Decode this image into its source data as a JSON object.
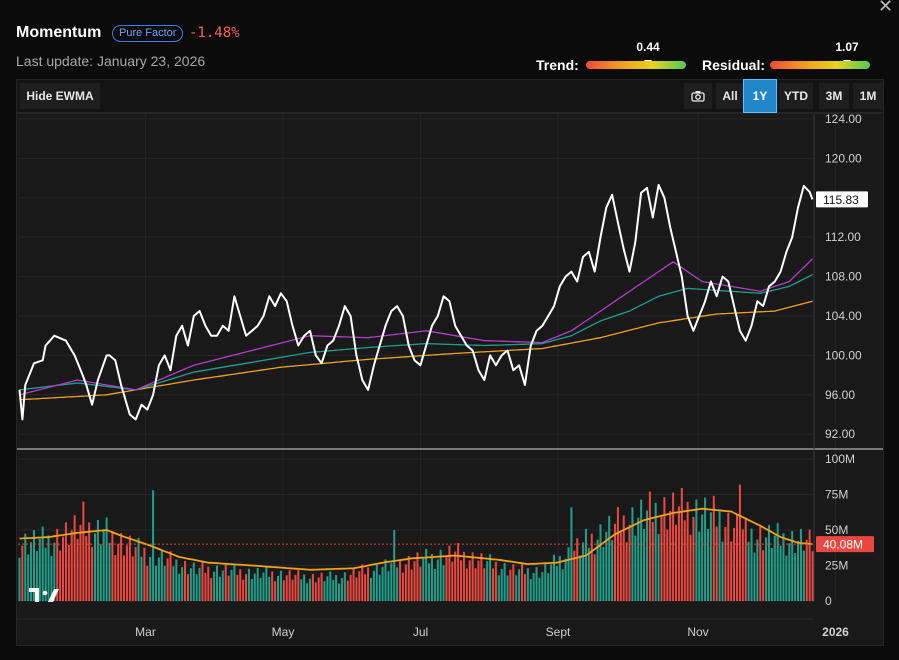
{
  "header": {
    "title": "Momentum",
    "badge": "Pure Factor",
    "change": "-1.48%",
    "last_update": "Last update: January 23, 2026",
    "close_glyph": "✕"
  },
  "gauges": {
    "trend": {
      "label": "Trend:",
      "value_text": "0.44",
      "value": 0.44
    },
    "residual": {
      "label": "Residual:",
      "value_text": "1.07",
      "value": 1.07
    }
  },
  "toolbar": {
    "hide_ewma": "Hide EWMA",
    "camera_icon": "camera-icon",
    "ranges": [
      "All",
      "1Y",
      "YTD",
      "3M",
      "1M"
    ],
    "active_range": "1Y"
  },
  "chart_data": {
    "type": "line",
    "price_axis": {
      "ticks": [
        "124.00",
        "120.00",
        "116.00",
        "112.00",
        "108.00",
        "104.00",
        "100.00",
        "96.00",
        "92.00"
      ],
      "ylim": [
        90.5,
        124.5
      ]
    },
    "volume_axis": {
      "ticks": [
        "100M",
        "75M",
        "50M",
        "25M",
        "0"
      ],
      "ylim": [
        0,
        100
      ]
    },
    "x_labels": [
      "Mar",
      "May",
      "Jul",
      "Sept",
      "Nov",
      "2026"
    ],
    "last_price_label": "115.83",
    "last_volume_label": "40.08M",
    "colors": {
      "price": "#ffffff",
      "ewma_fast": "#b33fc8",
      "ewma_mid": "#1f9e8a",
      "ewma_slow": "#f2a21d",
      "vol_up": "#1f9e8a",
      "vol_down": "#e8483f",
      "vol_avg": "#f2a21d",
      "vol_label_bg": "#e8483f"
    },
    "price_keypoints": [
      [
        0,
        96.5
      ],
      [
        1,
        93.5
      ],
      [
        2,
        97
      ],
      [
        5,
        99.2
      ],
      [
        8,
        99.5
      ],
      [
        9,
        101
      ],
      [
        12,
        102
      ],
      [
        16,
        101.5
      ],
      [
        19,
        100
      ],
      [
        22,
        97.8
      ],
      [
        23,
        97
      ],
      [
        25,
        95
      ],
      [
        27,
        97.5
      ],
      [
        30,
        100
      ],
      [
        31,
        100
      ],
      [
        33,
        99.5
      ],
      [
        35,
        97
      ],
      [
        37,
        95
      ],
      [
        38,
        94
      ],
      [
        40,
        93.5
      ],
      [
        42,
        95
      ],
      [
        44,
        94.5
      ],
      [
        46,
        96
      ],
      [
        48,
        99
      ],
      [
        50,
        100
      ],
      [
        52,
        98.5
      ],
      [
        54,
        102
      ],
      [
        56,
        103
      ],
      [
        58,
        101
      ],
      [
        60,
        104
      ],
      [
        62,
        104.5
      ],
      [
        64,
        103
      ],
      [
        66,
        102
      ],
      [
        68,
        102
      ],
      [
        70,
        103
      ],
      [
        72,
        102.5
      ],
      [
        74,
        106
      ],
      [
        76,
        104
      ],
      [
        78,
        102
      ],
      [
        80,
        102.5
      ],
      [
        82,
        103
      ],
      [
        84,
        104
      ],
      [
        86,
        106
      ],
      [
        88,
        105
      ],
      [
        90,
        106.3
      ],
      [
        92,
        105.5
      ],
      [
        94,
        103
      ],
      [
        96,
        101
      ],
      [
        98,
        102
      ],
      [
        100,
        102.5
      ],
      [
        102,
        100
      ],
      [
        104,
        99.2
      ],
      [
        106,
        101
      ],
      [
        108,
        101.5
      ],
      [
        110,
        103
      ],
      [
        112,
        105
      ],
      [
        114,
        104
      ],
      [
        116,
        100
      ],
      [
        118,
        97.5
      ],
      [
        120,
        96.5
      ],
      [
        122,
        99
      ],
      [
        124,
        101
      ],
      [
        126,
        103
      ],
      [
        128,
        104.5
      ],
      [
        130,
        105
      ],
      [
        132,
        104
      ],
      [
        134,
        101
      ],
      [
        136,
        99.5
      ],
      [
        138,
        99
      ],
      [
        140,
        101
      ],
      [
        142,
        103
      ],
      [
        144,
        104
      ],
      [
        146,
        106
      ],
      [
        148,
        105.5
      ],
      [
        150,
        103
      ],
      [
        152,
        102
      ],
      [
        154,
        101
      ],
      [
        156,
        100.5
      ],
      [
        158,
        98.5
      ],
      [
        160,
        97.5
      ],
      [
        162,
        100
      ],
      [
        164,
        99
      ],
      [
        166,
        100
      ],
      [
        168,
        100.5
      ],
      [
        170,
        98.5
      ],
      [
        172,
        99
      ],
      [
        174,
        97
      ],
      [
        176,
        101
      ],
      [
        178,
        102.5
      ],
      [
        180,
        103
      ],
      [
        182,
        104
      ],
      [
        184,
        105
      ],
      [
        186,
        107
      ],
      [
        188,
        108
      ],
      [
        190,
        108.5
      ],
      [
        192,
        107.5
      ],
      [
        194,
        110
      ],
      [
        196,
        110.5
      ],
      [
        198,
        108.5
      ],
      [
        200,
        112
      ],
      [
        202,
        115
      ],
      [
        204,
        116.3
      ],
      [
        206,
        113.5
      ],
      [
        208,
        110.8
      ],
      [
        210,
        108.5
      ],
      [
        212,
        111.5
      ],
      [
        214,
        116.5
      ],
      [
        216,
        117
      ],
      [
        218,
        114
      ],
      [
        220,
        117.3
      ],
      [
        222,
        116
      ],
      [
        224,
        113
      ],
      [
        226,
        110.5
      ],
      [
        228,
        108
      ],
      [
        230,
        104
      ],
      [
        232,
        102.5
      ],
      [
        234,
        104
      ],
      [
        236,
        105.5
      ],
      [
        238,
        107.5
      ],
      [
        240,
        106
      ],
      [
        242,
        108
      ],
      [
        244,
        107.5
      ],
      [
        246,
        105
      ],
      [
        248,
        102.5
      ],
      [
        250,
        101.5
      ],
      [
        252,
        103
      ],
      [
        254,
        105.5
      ],
      [
        256,
        105
      ],
      [
        258,
        107
      ],
      [
        260,
        107.5
      ],
      [
        262,
        108.5
      ],
      [
        264,
        110.5
      ],
      [
        266,
        112
      ],
      [
        268,
        115
      ],
      [
        270,
        117.2
      ],
      [
        272,
        116.6
      ],
      [
        273,
        115.83
      ]
    ],
    "ewma_fast_keypoints": [
      [
        0,
        96
      ],
      [
        20,
        97.5
      ],
      [
        40,
        96.5
      ],
      [
        60,
        99
      ],
      [
        80,
        100.5
      ],
      [
        100,
        102
      ],
      [
        120,
        101.8
      ],
      [
        140,
        102.5
      ],
      [
        160,
        101.5
      ],
      [
        180,
        101.3
      ],
      [
        190,
        102.5
      ],
      [
        200,
        104.5
      ],
      [
        210,
        106.5
      ],
      [
        220,
        108.5
      ],
      [
        225,
        109.5
      ],
      [
        235,
        107.5
      ],
      [
        245,
        107
      ],
      [
        255,
        106.5
      ],
      [
        265,
        107.5
      ],
      [
        273,
        109.8
      ]
    ],
    "ewma_mid_keypoints": [
      [
        0,
        96.5
      ],
      [
        20,
        97.2
      ],
      [
        40,
        96.5
      ],
      [
        60,
        98.3
      ],
      [
        80,
        99.3
      ],
      [
        100,
        100.3
      ],
      [
        120,
        100.8
      ],
      [
        140,
        101.2
      ],
      [
        160,
        101
      ],
      [
        180,
        101.2
      ],
      [
        190,
        102
      ],
      [
        200,
        103.5
      ],
      [
        210,
        104.5
      ],
      [
        220,
        106
      ],
      [
        230,
        106.8
      ],
      [
        245,
        106.5
      ],
      [
        255,
        106.3
      ],
      [
        265,
        107
      ],
      [
        273,
        108.2
      ]
    ],
    "ewma_slow_keypoints": [
      [
        0,
        95.5
      ],
      [
        30,
        96
      ],
      [
        60,
        97.5
      ],
      [
        90,
        98.8
      ],
      [
        120,
        99.6
      ],
      [
        150,
        100.2
      ],
      [
        180,
        100.7
      ],
      [
        200,
        101.8
      ],
      [
        220,
        103.3
      ],
      [
        240,
        104.2
      ],
      [
        260,
        104.5
      ],
      [
        273,
        105.5
      ]
    ],
    "volume_keypoints": [
      [
        0,
        42
      ],
      [
        10,
        43
      ],
      [
        20,
        50
      ],
      [
        30,
        48
      ],
      [
        40,
        37
      ],
      [
        50,
        30
      ],
      [
        60,
        23
      ],
      [
        70,
        22
      ],
      [
        80,
        20
      ],
      [
        90,
        19
      ],
      [
        100,
        17
      ],
      [
        110,
        17
      ],
      [
        120,
        22
      ],
      [
        130,
        27
      ],
      [
        140,
        30
      ],
      [
        150,
        34
      ],
      [
        160,
        28
      ],
      [
        170,
        22
      ],
      [
        180,
        21
      ],
      [
        190,
        35
      ],
      [
        200,
        48
      ],
      [
        210,
        58
      ],
      [
        220,
        65
      ],
      [
        230,
        65
      ],
      [
        240,
        60
      ],
      [
        250,
        48
      ],
      [
        260,
        45
      ],
      [
        270,
        43
      ],
      [
        273,
        40
      ]
    ],
    "volume_avg_keypoints": [
      [
        0,
        44
      ],
      [
        10,
        45
      ],
      [
        20,
        48
      ],
      [
        30,
        50
      ],
      [
        35,
        46
      ],
      [
        45,
        39
      ],
      [
        55,
        31
      ],
      [
        65,
        27
      ],
      [
        80,
        25
      ],
      [
        100,
        22
      ],
      [
        115,
        23
      ],
      [
        125,
        27
      ],
      [
        135,
        30
      ],
      [
        150,
        32
      ],
      [
        165,
        29
      ],
      [
        175,
        26
      ],
      [
        185,
        27
      ],
      [
        195,
        32
      ],
      [
        205,
        47
      ],
      [
        215,
        57
      ],
      [
        225,
        62
      ],
      [
        235,
        65
      ],
      [
        245,
        63
      ],
      [
        255,
        53
      ],
      [
        262,
        45
      ],
      [
        268,
        41
      ],
      [
        273,
        40
      ]
    ]
  }
}
